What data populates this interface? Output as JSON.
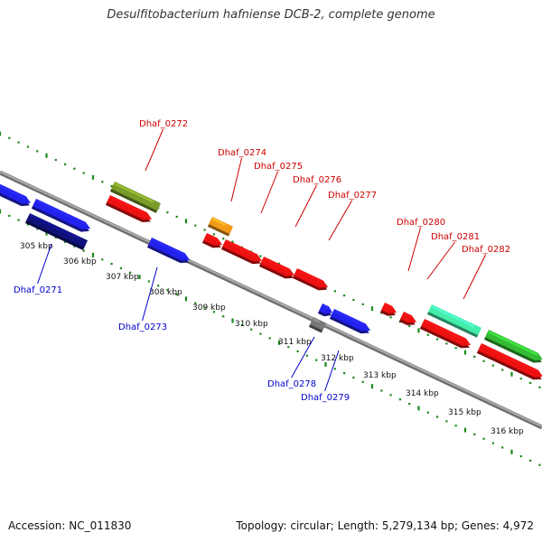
{
  "title": "Desulfitobacterium hafniense DCB-2, complete genome",
  "footer": {
    "accession": "Accession: NC_011830",
    "summary": "Topology: circular; Length: 5,279,134 bp; Genes: 4,972"
  },
  "colors": {
    "backbone": "#8a8a8a",
    "tick": "#1a8a1a",
    "forward_label": "#cc0000",
    "reverse_label": "#0000cc"
  },
  "kbp_marks": [
    "305 kbp",
    "306 kbp",
    "307 kbp",
    "308 kbp",
    "309 kbp",
    "310 kbp",
    "311 kbp",
    "312 kbp",
    "313 kbp",
    "314 kbp",
    "315 kbp",
    "316 kbp"
  ],
  "forward_labels": [
    {
      "text": "Dhaf_0272"
    },
    {
      "text": "Dhaf_0274"
    },
    {
      "text": "Dhaf_0275"
    },
    {
      "text": "Dhaf_0276"
    },
    {
      "text": "Dhaf_0277"
    },
    {
      "text": "Dhaf_0280"
    },
    {
      "text": "Dhaf_0281"
    },
    {
      "text": "Dhaf_0282"
    }
  ],
  "reverse_labels": [
    {
      "text": "Dhaf_0271"
    },
    {
      "text": "Dhaf_0273"
    },
    {
      "text": "Dhaf_0278"
    },
    {
      "text": "Dhaf_0279"
    }
  ],
  "features": [
    {
      "color": "#2222ee",
      "strand": "reverse"
    },
    {
      "color": "#2222ee",
      "strand": "reverse"
    },
    {
      "color": "#10107a",
      "strand": "reverse"
    },
    {
      "color": "#7a9a2a",
      "strand": "forward"
    },
    {
      "color": "#ee1111",
      "strand": "forward"
    },
    {
      "color": "#2222ee",
      "strand": "reverse"
    },
    {
      "color": "#f39a1a",
      "strand": "forward"
    },
    {
      "color": "#ee1111",
      "strand": "forward"
    },
    {
      "color": "#ee1111",
      "strand": "forward"
    },
    {
      "color": "#ee1111",
      "strand": "forward"
    },
    {
      "color": "#ee1111",
      "strand": "forward"
    },
    {
      "color": "#2222ee",
      "strand": "reverse"
    },
    {
      "color": "#777777",
      "strand": "reverse"
    },
    {
      "color": "#2222ee",
      "strand": "reverse"
    },
    {
      "color": "#ee1111",
      "strand": "forward"
    },
    {
      "color": "#ee1111",
      "strand": "forward"
    },
    {
      "color": "#44eeaa",
      "strand": "forward"
    },
    {
      "color": "#ee1111",
      "strand": "forward"
    },
    {
      "color": "#33bb33",
      "strand": "forward"
    },
    {
      "color": "#ee1111",
      "strand": "forward"
    }
  ]
}
